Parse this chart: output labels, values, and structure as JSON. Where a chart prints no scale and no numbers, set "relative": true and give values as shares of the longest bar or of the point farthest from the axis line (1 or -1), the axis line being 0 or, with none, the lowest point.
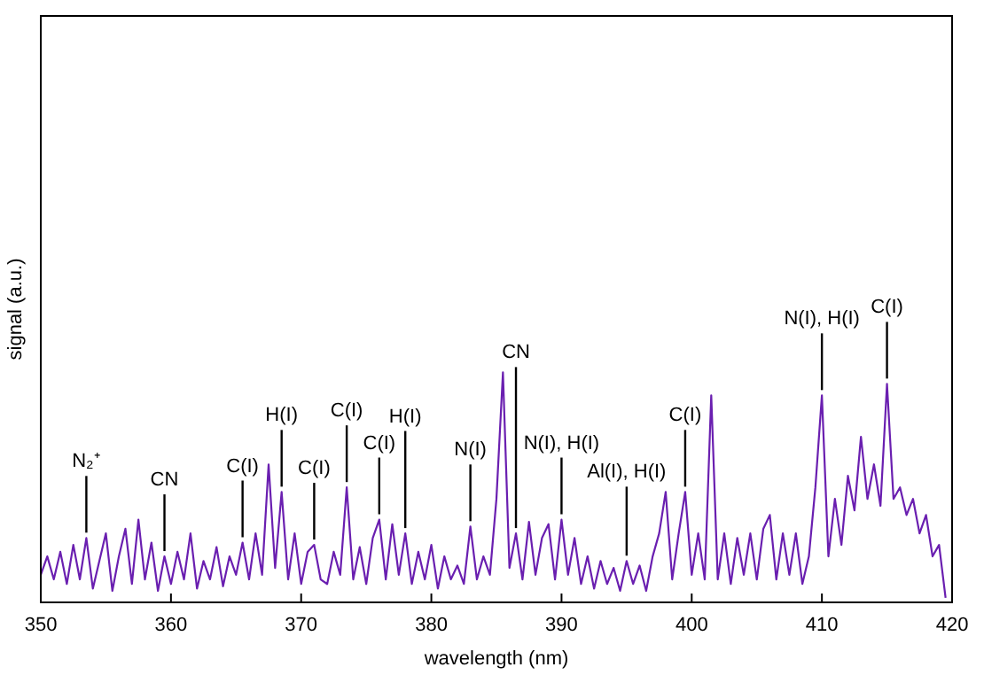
{
  "chart_data": {
    "type": "line",
    "relative": true,
    "xlabel": "wavelength (nm)",
    "ylabel": "signal (a.u.)",
    "xlim": [
      350,
      420
    ],
    "xticks": [
      350,
      360,
      370,
      380,
      390,
      400,
      410,
      420
    ],
    "grid": false,
    "marker": "none",
    "line_style": "solid",
    "x": [
      350,
      350.5,
      351,
      351.5,
      352,
      352.5,
      353,
      353.5,
      354,
      354.5,
      355,
      355.5,
      356,
      356.5,
      357,
      357.5,
      358,
      358.5,
      359,
      359.5,
      360,
      360.5,
      361,
      361.5,
      362,
      362.5,
      363,
      363.5,
      364,
      364.5,
      365,
      365.5,
      366,
      366.5,
      367,
      367.5,
      368,
      368.5,
      369,
      369.5,
      370,
      370.5,
      371,
      371.5,
      372,
      372.5,
      373,
      373.5,
      374,
      374.5,
      375,
      375.5,
      376,
      376.5,
      377,
      377.5,
      378,
      378.5,
      379,
      379.5,
      380,
      380.5,
      381,
      381.5,
      382,
      382.5,
      383,
      383.5,
      384,
      384.5,
      385,
      385.5,
      386,
      386.5,
      387,
      387.5,
      388,
      388.5,
      389,
      389.5,
      390,
      390.5,
      391,
      391.5,
      392,
      392.5,
      393,
      393.5,
      394,
      394.5,
      395,
      395.5,
      396,
      396.5,
      397,
      397.5,
      398,
      398.5,
      399,
      399.5,
      400,
      400.5,
      401,
      401.5,
      402,
      402.5,
      403,
      403.5,
      404,
      404.5,
      405,
      405.5,
      406,
      406.5,
      407,
      407.5,
      408,
      408.5,
      409,
      409.5,
      410,
      410.5,
      411,
      411.5,
      412,
      412.5,
      413,
      413.5,
      414,
      414.5,
      415,
      415.5,
      416,
      416.5,
      417,
      417.5,
      418,
      418.5,
      419,
      419.5
    ],
    "series": [
      {
        "color": "#6a1fb0",
        "values": [
          0.12,
          0.2,
          0.1,
          0.22,
          0.08,
          0.25,
          0.1,
          0.28,
          0.06,
          0.18,
          0.3,
          0.05,
          0.2,
          0.32,
          0.08,
          0.36,
          0.1,
          0.26,
          0.05,
          0.2,
          0.08,
          0.22,
          0.1,
          0.3,
          0.06,
          0.18,
          0.1,
          0.24,
          0.07,
          0.2,
          0.12,
          0.26,
          0.1,
          0.3,
          0.12,
          0.6,
          0.15,
          0.48,
          0.1,
          0.3,
          0.08,
          0.22,
          0.25,
          0.1,
          0.08,
          0.22,
          0.12,
          0.5,
          0.1,
          0.24,
          0.08,
          0.28,
          0.36,
          0.1,
          0.34,
          0.12,
          0.3,
          0.08,
          0.22,
          0.1,
          0.25,
          0.06,
          0.2,
          0.1,
          0.16,
          0.08,
          0.33,
          0.1,
          0.2,
          0.12,
          0.45,
          1,
          0.15,
          0.3,
          0.1,
          0.35,
          0.12,
          0.28,
          0.34,
          0.1,
          0.36,
          0.12,
          0.28,
          0.08,
          0.2,
          0.06,
          0.18,
          0.08,
          0.15,
          0.05,
          0.18,
          0.08,
          0.16,
          0.05,
          0.2,
          0.3,
          0.48,
          0.1,
          0.3,
          0.48,
          0.12,
          0.3,
          0.1,
          0.9,
          0.1,
          0.3,
          0.08,
          0.28,
          0.12,
          0.3,
          0.1,
          0.32,
          0.38,
          0.1,
          0.3,
          0.12,
          0.3,
          0.08,
          0.2,
          0.5,
          0.9,
          0.2,
          0.45,
          0.25,
          0.55,
          0.4,
          0.72,
          0.45,
          0.6,
          0.42,
          0.95,
          0.45,
          0.5,
          0.38,
          0.45,
          0.3,
          0.38,
          0.2,
          0.25,
          0.02
        ]
      }
    ],
    "annotations": [
      {
        "text": "N₂⁺",
        "x": 353.5,
        "y": 0.28
      },
      {
        "text": "CN",
        "x": 359.5,
        "y": 0.2
      },
      {
        "text": "C(I)",
        "x": 365.5,
        "y": 0.26
      },
      {
        "text": "H(I)",
        "x": 368.5,
        "y": 0.48
      },
      {
        "text": "C(I)",
        "x": 371,
        "y": 0.25
      },
      {
        "text": "C(I)",
        "x": 373.5,
        "y": 0.5
      },
      {
        "text": "C(I)",
        "x": 376,
        "y": 0.36
      },
      {
        "text": "H(I)",
        "x": 378,
        "y": 0.3
      },
      {
        "text": "N(I)",
        "x": 383,
        "y": 0.33
      },
      {
        "text": "CN",
        "x": 386.5,
        "y": 0.3
      },
      {
        "text": "N(I), H(I)",
        "x": 390,
        "y": 0.36
      },
      {
        "text": "Al(I), H(I)",
        "x": 395,
        "y": 0.18
      },
      {
        "text": "C(I)",
        "x": 399.5,
        "y": 0.48
      },
      {
        "text": "N(I), H(I)",
        "x": 410,
        "y": 0.9
      },
      {
        "text": "C(I)",
        "x": 415,
        "y": 0.95
      }
    ]
  }
}
